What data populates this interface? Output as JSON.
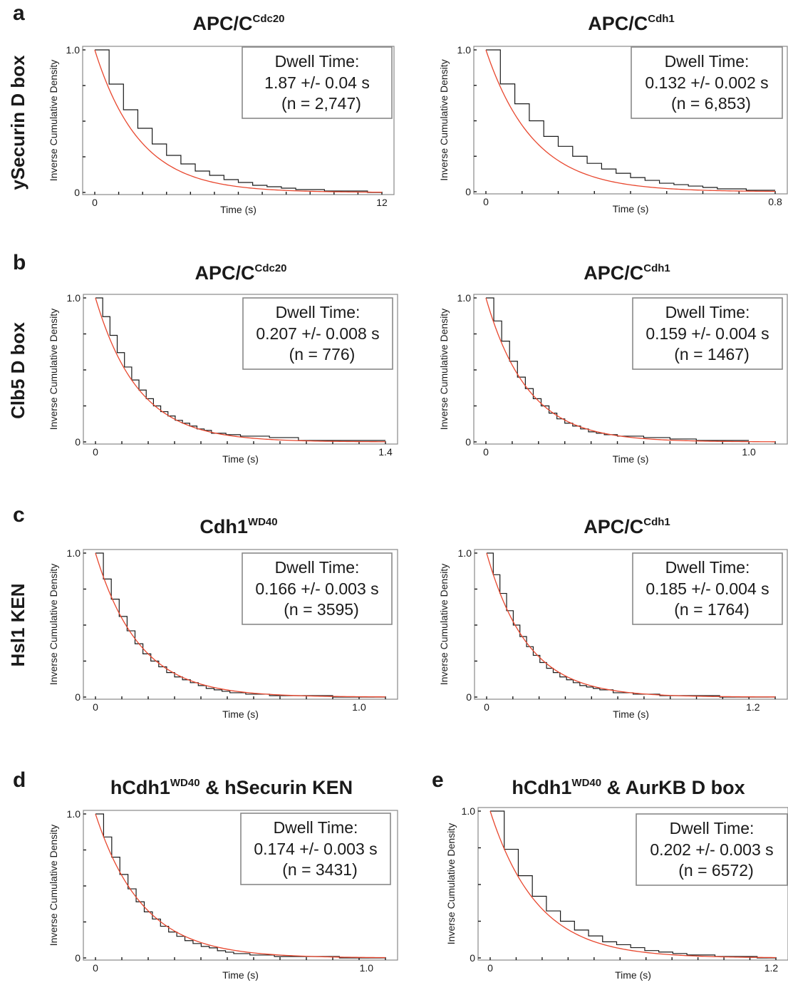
{
  "row_labels": [
    {
      "panel": "a",
      "label": "ySecurin D box"
    },
    {
      "panel": "b",
      "label": "Clb5 D box"
    },
    {
      "panel": "c",
      "label": "Hsl1 KEN"
    }
  ],
  "colors": {
    "fit_line": "#e8472e",
    "histogram": "#1a1a1a",
    "frame": "#888888"
  },
  "chart_data": [
    {
      "type": "line",
      "panel_letter": "a",
      "title": "APC/C",
      "title_sup": "Cdc20",
      "title_suffix": "",
      "xlabel": "Time (s)",
      "ylabel": "Inverse Cumulative Density",
      "xlim": [
        0,
        12
      ],
      "ylim": [
        0,
        1.0
      ],
      "x_tick_labels": [
        "0",
        "12"
      ],
      "y_tick_labels": [
        "0",
        "1.0"
      ],
      "minor_x_ticks": 12,
      "dwell": {
        "label": "Dwell Time:",
        "value": "1.87 +/- 0.04 s",
        "n": "(n = 2,747)"
      },
      "series": [
        {
          "name": "",
          "kind": "histogram",
          "x": [
            0,
            0.6,
            1.2,
            1.8,
            2.4,
            3.0,
            3.6,
            4.2,
            4.8,
            5.4,
            6.0,
            6.6,
            7.2,
            7.8,
            8.4,
            9.0,
            9.6,
            10.2,
            10.8,
            11.4,
            12.0
          ],
          "values": [
            1.0,
            0.76,
            0.58,
            0.45,
            0.34,
            0.26,
            0.2,
            0.15,
            0.12,
            0.09,
            0.07,
            0.05,
            0.04,
            0.03,
            0.02,
            0.02,
            0.01,
            0.01,
            0.01,
            0.0
          ]
        },
        {
          "name": "",
          "kind": "fit",
          "tau": 1.87
        }
      ]
    },
    {
      "type": "line",
      "panel_letter": "",
      "title": "APC/C",
      "title_sup": "Cdh1",
      "title_suffix": "",
      "xlabel": "Time (s)",
      "ylabel": "Inverse Cumulative Density",
      "xlim": [
        0,
        0.8
      ],
      "ylim": [
        0,
        1.0
      ],
      "x_tick_labels": [
        "0",
        "0.8"
      ],
      "y_tick_labels": [
        "0",
        "1.0"
      ],
      "minor_x_ticks": 8,
      "dwell": {
        "label": "Dwell Time:",
        "value": "0.132 +/- 0.002 s",
        "n": "(n = 6,853)"
      },
      "series": [
        {
          "name": "",
          "kind": "histogram",
          "x": [
            0,
            0.04,
            0.08,
            0.12,
            0.16,
            0.2,
            0.24,
            0.28,
            0.32,
            0.36,
            0.4,
            0.44,
            0.48,
            0.52,
            0.56,
            0.6,
            0.64,
            0.68,
            0.72,
            0.76,
            0.8
          ],
          "values": [
            1.0,
            0.76,
            0.62,
            0.5,
            0.39,
            0.32,
            0.25,
            0.2,
            0.16,
            0.13,
            0.1,
            0.08,
            0.06,
            0.05,
            0.04,
            0.03,
            0.02,
            0.02,
            0.01,
            0.01
          ]
        },
        {
          "name": "",
          "kind": "fit",
          "tau": 0.132
        }
      ]
    },
    {
      "type": "line",
      "panel_letter": "b",
      "title": "APC/C",
      "title_sup": "Cdc20",
      "title_suffix": "",
      "xlabel": "Time (s)",
      "ylabel": "Inverse Cumulative Density",
      "xlim": [
        0,
        1.4
      ],
      "ylim": [
        0,
        1.0
      ],
      "x_tick_labels": [
        "0",
        "1.4"
      ],
      "y_tick_labels": [
        "0",
        "1.0"
      ],
      "minor_x_ticks": 0,
      "dwell": {
        "label": "Dwell Time:",
        "value": "0.207 +/- 0.008 s",
        "n": "(n = 776)"
      },
      "series": [
        {
          "name": "",
          "kind": "histogram",
          "x": [
            0,
            0.035,
            0.07,
            0.105,
            0.14,
            0.175,
            0.21,
            0.245,
            0.28,
            0.315,
            0.35,
            0.385,
            0.42,
            0.455,
            0.49,
            0.525,
            0.56,
            0.63,
            0.7,
            0.84,
            0.98,
            1.4
          ],
          "values": [
            1.0,
            0.87,
            0.74,
            0.62,
            0.52,
            0.43,
            0.36,
            0.3,
            0.25,
            0.21,
            0.18,
            0.15,
            0.13,
            0.11,
            0.09,
            0.08,
            0.06,
            0.05,
            0.04,
            0.03,
            0.01
          ]
        },
        {
          "name": "",
          "kind": "fit",
          "tau": 0.207
        }
      ]
    },
    {
      "type": "line",
      "panel_letter": "",
      "title": "APC/C",
      "title_sup": "Cdh1",
      "title_suffix": "",
      "xlabel": "Time (s)",
      "ylabel": "Inverse Cumulative Density",
      "xlim": [
        0,
        1.1
      ],
      "ylim": [
        0,
        1.0
      ],
      "x_tick_labels": [
        "0",
        "1.0"
      ],
      "y_tick_labels": [
        "0",
        "1.0"
      ],
      "minor_x_ticks": 0,
      "dwell": {
        "label": "Dwell Time:",
        "value": "0.159 +/- 0.004 s",
        "n": "(n = 1467)"
      },
      "series": [
        {
          "name": "",
          "kind": "histogram",
          "x": [
            0,
            0.03,
            0.06,
            0.09,
            0.12,
            0.15,
            0.18,
            0.21,
            0.24,
            0.27,
            0.3,
            0.33,
            0.36,
            0.39,
            0.42,
            0.45,
            0.5,
            0.6,
            0.7,
            0.8,
            1.0
          ],
          "values": [
            1.0,
            0.84,
            0.7,
            0.56,
            0.45,
            0.37,
            0.3,
            0.25,
            0.2,
            0.16,
            0.13,
            0.11,
            0.09,
            0.07,
            0.06,
            0.05,
            0.04,
            0.03,
            0.02,
            0.01
          ]
        },
        {
          "name": "",
          "kind": "fit",
          "tau": 0.159
        }
      ]
    },
    {
      "type": "line",
      "panel_letter": "c",
      "title": "Cdh1",
      "title_sup": "WD40",
      "title_suffix": "",
      "xlabel": "Time (s)",
      "ylabel": "Inverse Cumulative Density",
      "xlim": [
        0,
        1.1
      ],
      "ylim": [
        0,
        1.0
      ],
      "x_tick_labels": [
        "0",
        "1.0"
      ],
      "y_tick_labels": [
        "0",
        "1.0"
      ],
      "minor_x_ticks": 0,
      "dwell": {
        "label": "Dwell Time:",
        "value": "0.166 +/- 0.003 s",
        "n": "(n = 3595)"
      },
      "series": [
        {
          "name": "",
          "kind": "histogram",
          "x": [
            0,
            0.03,
            0.06,
            0.09,
            0.12,
            0.15,
            0.18,
            0.21,
            0.24,
            0.27,
            0.3,
            0.33,
            0.36,
            0.39,
            0.42,
            0.45,
            0.48,
            0.51,
            0.57,
            0.66,
            0.78,
            0.9,
            1.1
          ],
          "values": [
            1.0,
            0.82,
            0.68,
            0.56,
            0.46,
            0.37,
            0.3,
            0.25,
            0.21,
            0.17,
            0.14,
            0.12,
            0.1,
            0.08,
            0.06,
            0.05,
            0.04,
            0.03,
            0.02,
            0.01,
            0.01,
            0.0
          ]
        },
        {
          "name": "",
          "kind": "fit",
          "tau": 0.166
        }
      ]
    },
    {
      "type": "line",
      "panel_letter": "",
      "title": "APC/C",
      "title_sup": "Cdh1",
      "title_suffix": "",
      "xlabel": "Time (s)",
      "ylabel": "Inverse Cumulative Density",
      "xlim": [
        0,
        1.3
      ],
      "ylim": [
        0,
        1.0
      ],
      "x_tick_labels": [
        "0",
        "1.2"
      ],
      "y_tick_labels": [
        "0",
        "1.0"
      ],
      "minor_x_ticks": 0,
      "dwell": {
        "label": "Dwell Time:",
        "value": "0.185 +/- 0.004 s",
        "n": "(n = 1764)"
      },
      "series": [
        {
          "name": "",
          "kind": "histogram",
          "x": [
            0,
            0.03,
            0.06,
            0.09,
            0.12,
            0.15,
            0.18,
            0.21,
            0.24,
            0.27,
            0.3,
            0.33,
            0.36,
            0.39,
            0.42,
            0.45,
            0.48,
            0.51,
            0.57,
            0.66,
            0.78,
            0.9,
            1.05,
            1.3
          ],
          "values": [
            1.0,
            0.85,
            0.72,
            0.6,
            0.5,
            0.42,
            0.35,
            0.29,
            0.24,
            0.2,
            0.17,
            0.14,
            0.12,
            0.1,
            0.08,
            0.07,
            0.06,
            0.05,
            0.03,
            0.02,
            0.01,
            0.01,
            0.0
          ]
        },
        {
          "name": "",
          "kind": "fit",
          "tau": 0.185
        }
      ]
    },
    {
      "type": "line",
      "panel_letter": "d",
      "title": "hCdh1",
      "title_sup": "WD40",
      "title_suffix": " & hSecurin KEN",
      "xlabel": "Time (s)",
      "ylabel": "Inverse Cumulative Density",
      "xlim": [
        0,
        1.07
      ],
      "ylim": [
        0,
        1.0
      ],
      "x_tick_labels": [
        "0",
        "1.0"
      ],
      "y_tick_labels": [
        "0",
        "1.0"
      ],
      "minor_x_ticks": 0,
      "dwell": {
        "label": "Dwell Time:",
        "value": "0.174 +/- 0.003 s",
        "n": "(n = 3431)"
      },
      "series": [
        {
          "name": "",
          "kind": "histogram",
          "x": [
            0,
            0.03,
            0.06,
            0.09,
            0.12,
            0.15,
            0.18,
            0.21,
            0.24,
            0.27,
            0.3,
            0.33,
            0.36,
            0.39,
            0.42,
            0.45,
            0.48,
            0.51,
            0.57,
            0.66,
            0.78,
            0.9,
            1.07
          ],
          "values": [
            1.0,
            0.84,
            0.7,
            0.58,
            0.48,
            0.39,
            0.32,
            0.27,
            0.22,
            0.18,
            0.15,
            0.12,
            0.1,
            0.08,
            0.07,
            0.05,
            0.04,
            0.03,
            0.02,
            0.01,
            0.01,
            0.0
          ]
        },
        {
          "name": "",
          "kind": "fit",
          "tau": 0.174
        }
      ]
    },
    {
      "type": "line",
      "panel_letter": "e",
      "title": "hCdh1",
      "title_sup": "WD40",
      "title_suffix": " & AurKB D box",
      "xlabel": "Time (s)",
      "ylabel": "Inverse Cumulative Density",
      "xlim": [
        0,
        1.22
      ],
      "ylim": [
        0,
        1.0
      ],
      "x_tick_labels": [
        "0",
        "1.2"
      ],
      "y_tick_labels": [
        "0",
        "1.0"
      ],
      "minor_x_ticks": 0,
      "dwell": {
        "label": "Dwell Time:",
        "value": "0.202 +/- 0.003 s",
        "n": "(n = 6572)"
      },
      "series": [
        {
          "name": "",
          "kind": "histogram",
          "x": [
            0,
            0.06,
            0.12,
            0.18,
            0.24,
            0.3,
            0.36,
            0.42,
            0.48,
            0.54,
            0.6,
            0.66,
            0.72,
            0.78,
            0.84,
            0.9,
            0.96,
            1.02,
            1.08,
            1.14,
            1.22
          ],
          "values": [
            1.0,
            0.74,
            0.56,
            0.42,
            0.32,
            0.25,
            0.19,
            0.15,
            0.11,
            0.09,
            0.07,
            0.05,
            0.04,
            0.03,
            0.02,
            0.02,
            0.01,
            0.01,
            0.01,
            0.0
          ]
        },
        {
          "name": "",
          "kind": "fit",
          "tau": 0.202
        }
      ]
    }
  ]
}
